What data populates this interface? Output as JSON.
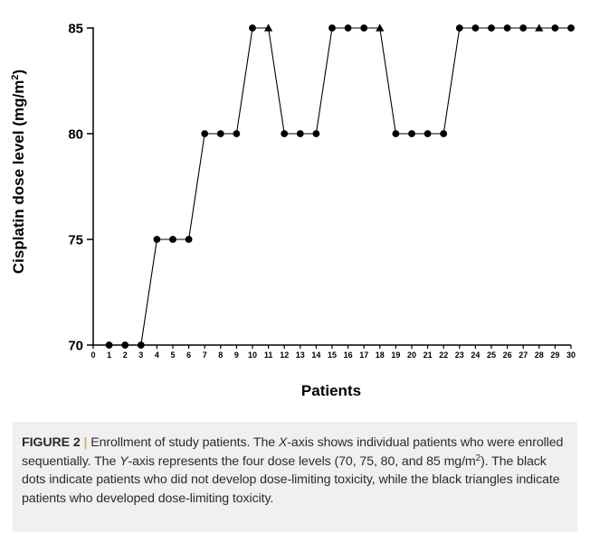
{
  "chart_data": {
    "type": "line",
    "ylabel_main": "Cisplatin dose level (mg/m",
    "ylabel_sup": "2",
    "ylabel_end": ")",
    "xlabel": "Patients",
    "ylim": [
      70,
      85
    ],
    "xlim": [
      0,
      30
    ],
    "yticks": [
      70,
      75,
      80,
      85
    ],
    "xticks": [
      0,
      1,
      2,
      3,
      4,
      5,
      6,
      7,
      8,
      9,
      10,
      11,
      12,
      13,
      14,
      15,
      16,
      17,
      18,
      19,
      20,
      21,
      22,
      23,
      24,
      25,
      26,
      27,
      28,
      29,
      30
    ],
    "series": [
      {
        "x": [
          1,
          2,
          3,
          4,
          5,
          6,
          7,
          8,
          9,
          10,
          11,
          12,
          13,
          14,
          15,
          16,
          17,
          18,
          19,
          20,
          21,
          22,
          23,
          24,
          25,
          26,
          27,
          28,
          29,
          30
        ],
        "y": [
          70,
          70,
          70,
          75,
          75,
          75,
          80,
          80,
          80,
          85,
          85,
          80,
          80,
          80,
          85,
          85,
          85,
          85,
          80,
          80,
          80,
          80,
          85,
          85,
          85,
          85,
          85,
          85,
          85,
          85
        ],
        "marker": [
          "dot",
          "dot",
          "dot",
          "dot",
          "dot",
          "dot",
          "dot",
          "dot",
          "dot",
          "dot",
          "triangle",
          "dot",
          "dot",
          "dot",
          "dot",
          "dot",
          "dot",
          "triangle",
          "dot",
          "dot",
          "dot",
          "dot",
          "dot",
          "dot",
          "dot",
          "dot",
          "dot",
          "triangle",
          "dot",
          "dot"
        ]
      }
    ],
    "marker_legend": {
      "dot": "no dose-limiting toxicity",
      "triangle": "dose-limiting toxicity"
    },
    "colors": {
      "line": "#000000",
      "marker": "#000000"
    }
  },
  "caption": {
    "label": "FIGURE 2",
    "separator": "|",
    "part1": "Enrollment of study patients. The ",
    "x_italic": "X",
    "part2": "-axis shows individual patients who were enrolled sequentially. The ",
    "y_italic": "Y",
    "part3": "-axis represents the four dose levels (70, 75, 80, and 85 mg/m",
    "sup": "2",
    "part4": "). The black dots indicate patients who did not develop dose-limiting toxicity, while the black triangles indicate patients who developed dose-limiting toxicity."
  }
}
